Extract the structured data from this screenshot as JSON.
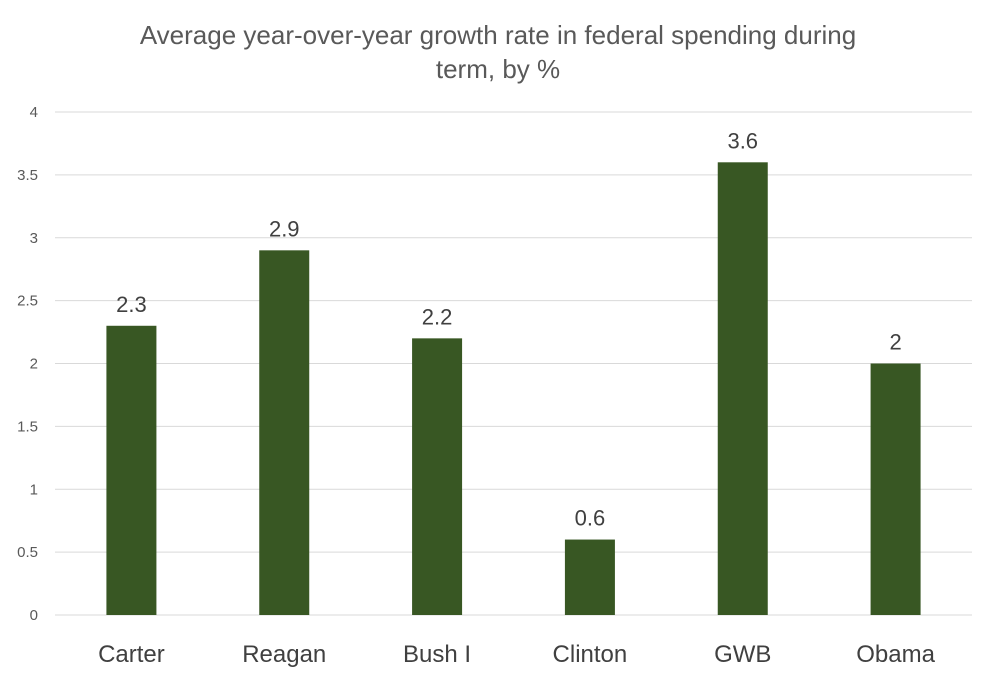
{
  "chart_data": {
    "type": "bar",
    "title_line1": "Average year-over-year growth rate in federal spending during",
    "title_line2": "term, by %",
    "categories": [
      "Carter",
      "Reagan",
      "Bush I",
      "Clinton",
      "GWB",
      "Obama"
    ],
    "values": [
      2.3,
      2.9,
      2.2,
      0.6,
      3.6,
      2
    ],
    "data_labels": [
      "2.3",
      "2.9",
      "2.2",
      "0.6",
      "3.6",
      "2"
    ],
    "ylim": [
      0,
      4
    ],
    "yticks": [
      "0",
      "0.5",
      "1",
      "1.5",
      "2",
      "2.5",
      "3",
      "3.5",
      "4"
    ],
    "ytick_values": [
      0,
      0.5,
      1,
      1.5,
      2,
      2.5,
      3,
      3.5,
      4
    ],
    "grid": true,
    "legend": "none",
    "bar_color": "#385723"
  }
}
